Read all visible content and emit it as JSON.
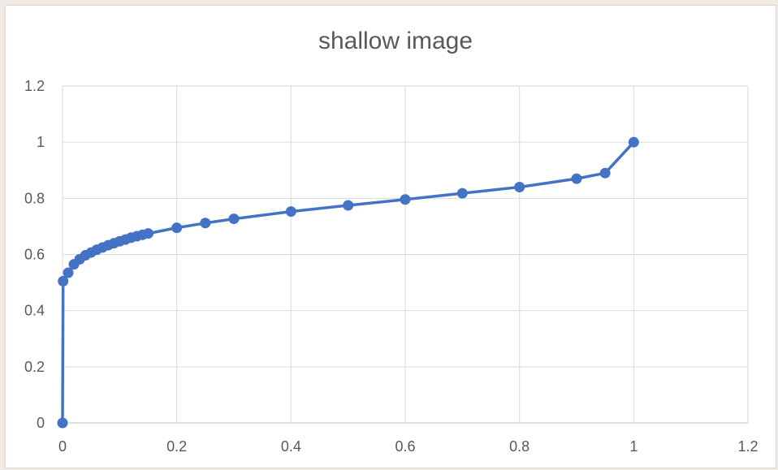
{
  "chart_data": {
    "type": "scatter",
    "title": "shallow image",
    "xlabel": "",
    "ylabel": "",
    "xlim": [
      0,
      1.2
    ],
    "ylim": [
      0,
      1.2
    ],
    "x_ticks": [
      0,
      0.2,
      0.4,
      0.6,
      0.8,
      1,
      1.2
    ],
    "y_ticks": [
      0,
      0.2,
      0.4,
      0.6,
      0.8,
      1,
      1.2
    ],
    "grid": true,
    "legend": "none",
    "series": [
      {
        "color": "#4472c4",
        "style": "line-with-markers",
        "points": [
          [
            0,
            0
          ],
          [
            0.001,
            0.505
          ],
          [
            0.01,
            0.535
          ],
          [
            0.02,
            0.565
          ],
          [
            0.03,
            0.583
          ],
          [
            0.04,
            0.597
          ],
          [
            0.05,
            0.607
          ],
          [
            0.06,
            0.617
          ],
          [
            0.07,
            0.625
          ],
          [
            0.08,
            0.633
          ],
          [
            0.09,
            0.64
          ],
          [
            0.1,
            0.647
          ],
          [
            0.11,
            0.653
          ],
          [
            0.12,
            0.66
          ],
          [
            0.13,
            0.665
          ],
          [
            0.14,
            0.67
          ],
          [
            0.15,
            0.675
          ],
          [
            0.2,
            0.695
          ],
          [
            0.25,
            0.712
          ],
          [
            0.3,
            0.727
          ],
          [
            0.4,
            0.753
          ],
          [
            0.5,
            0.775
          ],
          [
            0.6,
            0.796
          ],
          [
            0.7,
            0.818
          ],
          [
            0.8,
            0.84
          ],
          [
            0.9,
            0.87
          ],
          [
            0.95,
            0.89
          ],
          [
            1,
            1
          ]
        ]
      }
    ]
  }
}
